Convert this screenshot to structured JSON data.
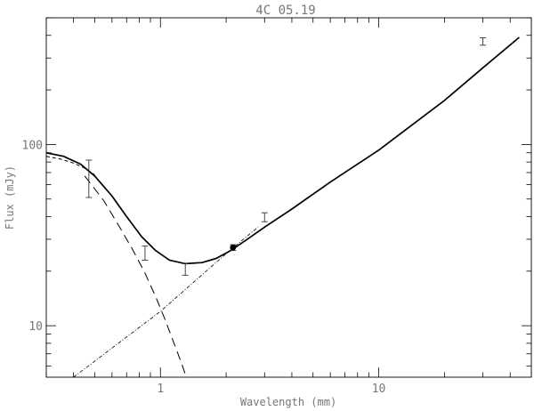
{
  "chart_data": {
    "type": "line",
    "title": "4C 05.19",
    "xlabel": "Wavelength (mm)",
    "ylabel": "Flux (mJy)",
    "x_scale": "log",
    "y_scale": "log",
    "xlim": [
      0.3,
      50
    ],
    "ylim": [
      5.2,
      500
    ],
    "grid": false,
    "x_tick_labels": [
      {
        "value": 1,
        "label": "1"
      },
      {
        "value": 10,
        "label": "10"
      }
    ],
    "y_tick_labels": [
      {
        "value": 10,
        "label": "10"
      },
      {
        "value": 100,
        "label": "100"
      }
    ],
    "series": [
      {
        "style": "solid",
        "x": [
          0.3,
          0.36,
          0.43,
          0.5,
          0.6,
          0.7,
          0.82,
          0.95,
          1.1,
          1.3,
          1.55,
          1.8,
          2.1,
          2.5,
          3.0,
          4.0,
          6.0,
          10.0,
          20.0,
          30.0,
          44.0
        ],
        "y": [
          90,
          86,
          78,
          67,
          52,
          40,
          31,
          26,
          23,
          22,
          22.3,
          23.5,
          26,
          30,
          35,
          44,
          62,
          93,
          175,
          265,
          390
        ]
      },
      {
        "style": "dashed-short",
        "x": [
          0.3,
          0.35,
          0.4,
          0.45,
          0.5
        ],
        "y": [
          86,
          83,
          79,
          74,
          68
        ]
      },
      {
        "style": "dashed-long",
        "x": [
          0.45,
          0.55,
          0.65,
          0.75,
          0.85,
          0.95,
          1.05,
          1.15,
          1.25,
          1.3
        ],
        "y": [
          67,
          49,
          35,
          26,
          19.5,
          14.5,
          10.8,
          8.1,
          6.2,
          5.4
        ]
      },
      {
        "style": "dash-dot",
        "x": [
          0.4,
          1.0,
          2.0,
          2.8
        ],
        "y": [
          5.2,
          12,
          25,
          35
        ]
      }
    ],
    "points": [
      {
        "x": 0.47,
        "y": 64,
        "yerr_low": 51,
        "yerr_high": 82
      },
      {
        "x": 0.85,
        "y": 25,
        "yerr_low": 23,
        "yerr_high": 27.5
      },
      {
        "x": 1.3,
        "y": 20.5,
        "yerr_low": 19,
        "yerr_high": 22
      },
      {
        "x": 2.15,
        "y": 27,
        "marker": "filled-circle",
        "yerr_low": 26,
        "yerr_high": 28
      },
      {
        "x": 3.0,
        "y": 39.5,
        "yerr_low": 37.5,
        "yerr_high": 42
      },
      {
        "x": 30.0,
        "y": 368,
        "yerr_low": 353,
        "yerr_high": 388
      }
    ]
  }
}
